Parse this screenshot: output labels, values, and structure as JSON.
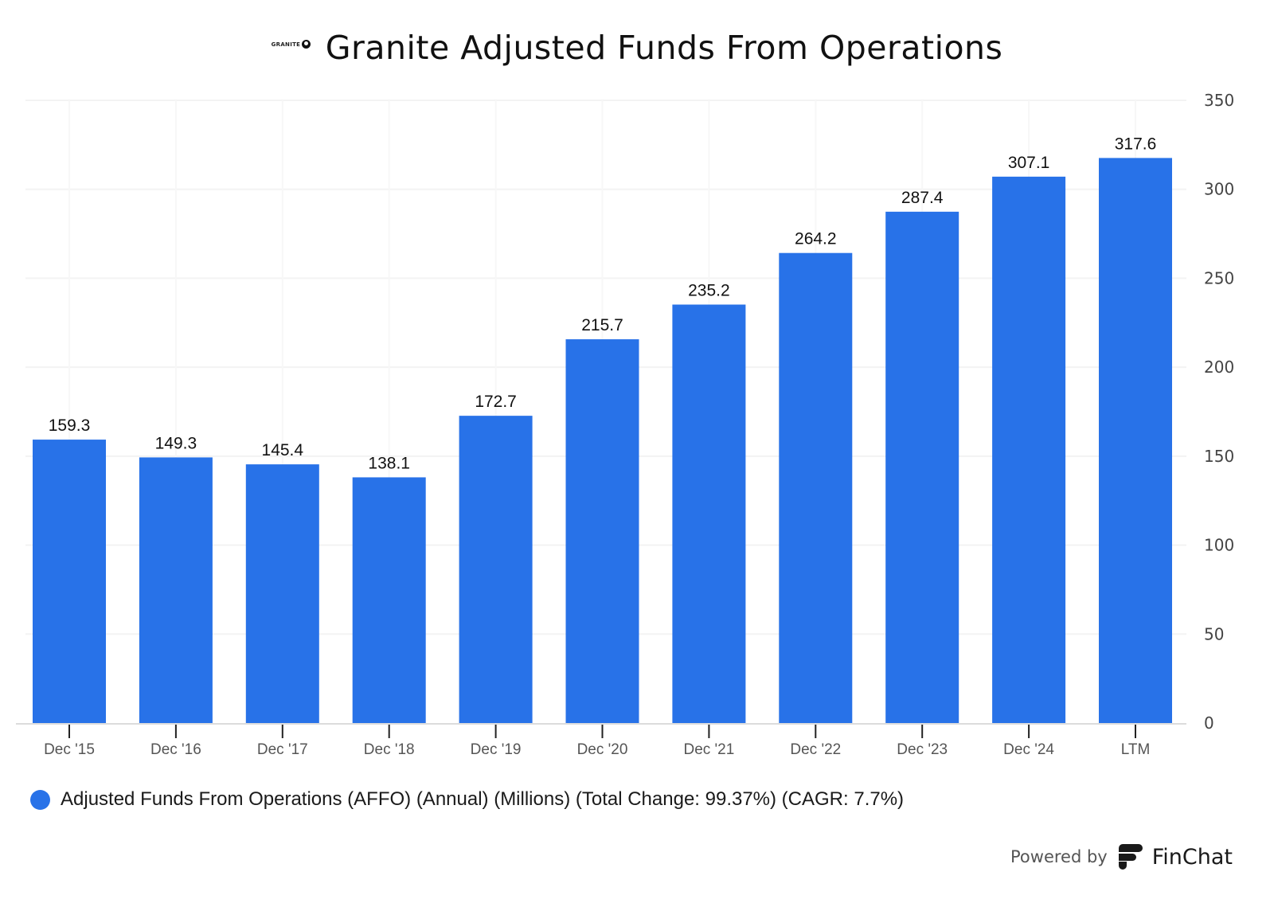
{
  "header": {
    "logo_text": "GRANITE",
    "title": "Granite Adjusted Funds From Operations"
  },
  "chart_data": {
    "type": "bar",
    "title": "Granite Adjusted Funds From Operations",
    "categories": [
      "Dec '15",
      "Dec '16",
      "Dec '17",
      "Dec '18",
      "Dec '19",
      "Dec '20",
      "Dec '21",
      "Dec '22",
      "Dec '23",
      "Dec '24",
      "LTM"
    ],
    "series": [
      {
        "name": "Adjusted Funds From Operations (AFFO) (Annual) (Millions) (Total Change: 99.37%) (CAGR: 7.7%)",
        "color": "#2872e8",
        "values": [
          159.3,
          149.3,
          145.4,
          138.1,
          172.7,
          215.7,
          235.2,
          264.2,
          287.4,
          307.1,
          317.6
        ],
        "labels": [
          "159.3",
          "149.3",
          "145.4",
          "138.1",
          "172.7",
          "215.7",
          "235.2",
          "264.2",
          "287.4",
          "307.1",
          "317.6"
        ]
      }
    ],
    "xlabel": "",
    "ylabel": "",
    "ylim": [
      0,
      350
    ],
    "yticks": [
      0,
      50,
      100,
      150,
      200,
      250,
      300,
      350
    ],
    "ytick_labels": [
      "0",
      "50",
      "100",
      "150",
      "200",
      "250",
      "300",
      "350"
    ],
    "y_axis_position": "right",
    "grid": true,
    "legend_position": "bottom-left"
  },
  "legend": {
    "label": "Adjusted Funds From Operations (AFFO) (Annual) (Millions) (Total Change: 99.37%) (CAGR: 7.7%)",
    "color": "#2872e8"
  },
  "footer": {
    "powered_by": "Powered by",
    "brand": "FinChat"
  }
}
